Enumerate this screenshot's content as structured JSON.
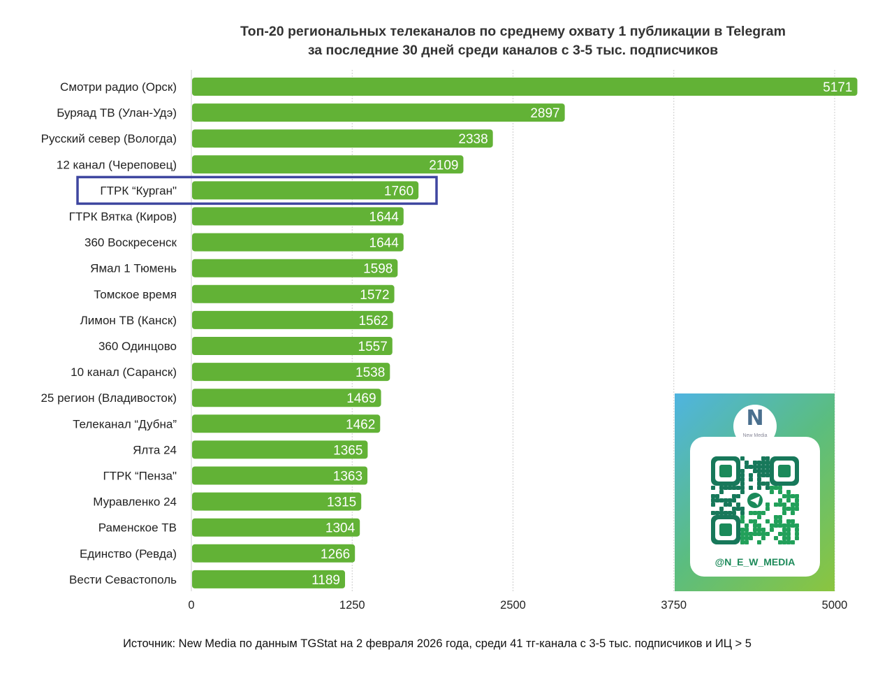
{
  "title_line1": "Топ-20 региональных телеканалов по среднему охвату 1 публикации в Telegram",
  "title_line2": "за последние 30 дней среди каналов с 3-5 тыс. подписчиков",
  "source": "Источник: New Media по данным TGStat на 2 февраля 2026 года, среди 41 тг-канала с 3-5 тыс. подписчиков и ИЦ > 5",
  "promo": {
    "logo_text": "New Media",
    "handle": "@N_E_W_MEDIA",
    "icon": "telegram-qr-code"
  },
  "colors": {
    "bar": "#62b236",
    "highlight": "#3f47a0"
  },
  "chart_data": {
    "type": "bar",
    "orientation": "horizontal",
    "title": "Топ-20 региональных телеканалов по среднему охвату 1 публикации в Telegram за последние 30 дней среди каналов с 3-5 тыс. подписчиков",
    "categories": [
      "Смотри радио (Орск)",
      "Буряад ТВ (Улан-Удэ)",
      "Русский север (Вологда)",
      "12 канал (Череповец)",
      "ГТРК “Курган\"",
      "ГТРК Вятка (Киров)",
      "360 Воскресенск",
      "Ямал 1 Тюмень",
      "Томское время",
      "Лимон ТВ (Канск)",
      "360 Одинцово",
      "10 канал (Саранск)",
      "25 регион (Владивосток)",
      "Телеканал “Дубна”",
      "Ялта 24",
      "ГТРК “Пенза\"",
      "Муравленко 24",
      "Раменское ТВ",
      "Единство (Ревда)",
      "Вести Севастополь"
    ],
    "values": [
      5171,
      2897,
      2338,
      2109,
      1760,
      1644,
      1644,
      1598,
      1572,
      1562,
      1557,
      1538,
      1469,
      1462,
      1365,
      1363,
      1315,
      1304,
      1266,
      1189
    ],
    "highlighted": "ГТРК “Курган\"",
    "xlim": [
      0,
      5000
    ],
    "xticks": [
      "0",
      "1250",
      "2500",
      "3750",
      "5000"
    ],
    "grid": true
  }
}
